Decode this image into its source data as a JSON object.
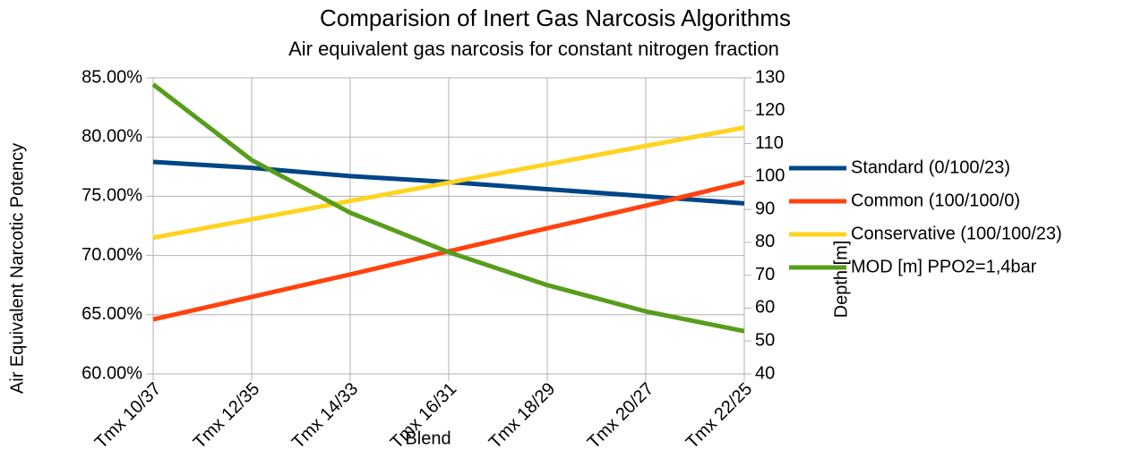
{
  "chart_data": {
    "type": "line",
    "title": "Comparision of Inert Gas Narcosis Algorithms",
    "subtitle": "Air  equivalent gas narcosis for constant nitrogen fraction",
    "x_label": "Blend",
    "y_label": "Air Equivalent Narcotic Potency",
    "y2_label": "Depth [m]",
    "categories": [
      "Tmx 10/37",
      "Tmx 12/35",
      "Tmx 14/33",
      "Tmx 16/31",
      "Tmx 18/29",
      "Tmx 20/27",
      "Tmx 22/25"
    ],
    "series": [
      {
        "name": "Standard (0/100/23)",
        "color": "#004586",
        "values": [
          77.9,
          77.4,
          76.7,
          76.2,
          75.6,
          75.0,
          74.4
        ]
      },
      {
        "name": "Common (100/100/0)",
        "color": "#ff420e",
        "values": [
          64.6,
          66.5,
          68.4,
          70.35,
          72.3,
          74.2,
          76.2
        ]
      },
      {
        "name": "Conservative (100/100/23)",
        "color": "#ffd320",
        "values": [
          71.5,
          73.05,
          74.6,
          76.15,
          77.7,
          79.25,
          80.8
        ]
      },
      {
        "name": "MOD [m] PPO2=1,4bar",
        "color": "#579d1c",
        "axis": "y2",
        "values": [
          128,
          105,
          89,
          77,
          67,
          59,
          53
        ]
      }
    ],
    "ylim": [
      60,
      85
    ],
    "yticks": [
      {
        "value": 60,
        "label": "60.00%"
      },
      {
        "value": 65,
        "label": "65.00%"
      },
      {
        "value": 70,
        "label": "70.00%"
      },
      {
        "value": 75,
        "label": "75.00%"
      },
      {
        "value": 80,
        "label": "80.00%"
      },
      {
        "value": 85,
        "label": "85.00%"
      }
    ],
    "y2lim": [
      40,
      130
    ],
    "y2ticks": [
      40,
      50,
      60,
      70,
      80,
      90,
      100,
      110,
      120,
      130
    ],
    "grid": true,
    "legend": "right"
  }
}
